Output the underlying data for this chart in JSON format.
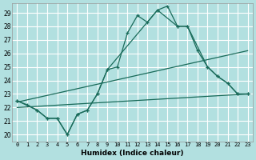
{
  "xlabel": "Humidex (Indice chaleur)",
  "background_color": "#b2e0e0",
  "line_color": "#1a6b5a",
  "grid_color": "#ffffff",
  "xlim": [
    -0.5,
    23.5
  ],
  "ylim": [
    19.5,
    29.7
  ],
  "xticks": [
    0,
    1,
    2,
    3,
    4,
    5,
    6,
    7,
    8,
    9,
    10,
    11,
    12,
    13,
    14,
    15,
    16,
    17,
    18,
    19,
    20,
    21,
    22,
    23
  ],
  "yticks": [
    20,
    21,
    22,
    23,
    24,
    25,
    26,
    27,
    28,
    29
  ],
  "line1_x": [
    0,
    1,
    2,
    3,
    4,
    5,
    6,
    7,
    8,
    9,
    10,
    11,
    12,
    13,
    14,
    15,
    16,
    17,
    18,
    19,
    20,
    21,
    22,
    23
  ],
  "line1_y": [
    22.5,
    22.2,
    21.8,
    21.2,
    21.2,
    20.0,
    21.5,
    21.8,
    23.0,
    24.8,
    25.0,
    27.5,
    28.8,
    28.3,
    29.2,
    29.5,
    28.0,
    28.0,
    26.2,
    25.0,
    24.3,
    23.8,
    23.0,
    23.0
  ],
  "line2_x": [
    0,
    23
  ],
  "line2_y": [
    22.4,
    26.2
  ],
  "line3_x": [
    0,
    23
  ],
  "line3_y": [
    22.0,
    23.0
  ],
  "line4_x": [
    0,
    2,
    3,
    4,
    5,
    6,
    7,
    8,
    9,
    14,
    16,
    17,
    19,
    20,
    21,
    22,
    23
  ],
  "line4_y": [
    22.5,
    21.8,
    21.2,
    21.2,
    20.0,
    21.5,
    21.8,
    23.0,
    24.8,
    29.2,
    28.0,
    28.0,
    25.0,
    24.3,
    23.8,
    23.0,
    23.0
  ]
}
